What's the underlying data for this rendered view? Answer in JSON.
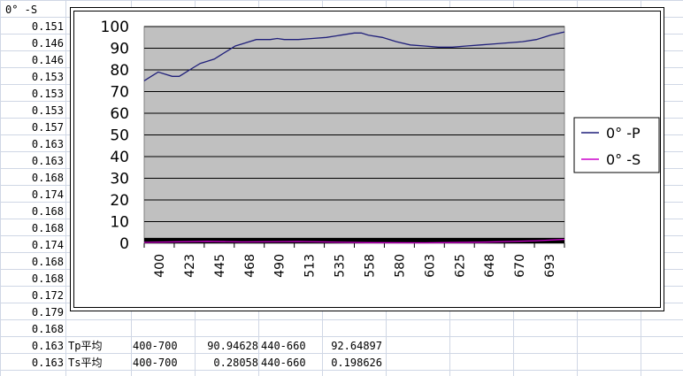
{
  "sheet": {
    "column_header": "0° -S",
    "column_values": [
      "0.151",
      "0.146",
      "0.146",
      "0.153",
      "0.153",
      "0.153",
      "0.157",
      "0.163",
      "0.163",
      "0.168",
      "0.174",
      "0.168",
      "0.168",
      "0.174",
      "0.168",
      "0.168",
      "0.172",
      "0.179",
      "0.168",
      "0.163",
      "0.163"
    ],
    "summary_rows": [
      {
        "label": "Tp平均",
        "range1": "400-700",
        "value1": "90.94628",
        "range2": "440-660",
        "value2": "92.64897"
      },
      {
        "label": "Ts平均",
        "range1": "400-700",
        "value1": "0.28058",
        "range2": "440-660",
        "value2": "0.198626"
      }
    ]
  },
  "chart_data": {
    "type": "line",
    "ylim": [
      0,
      100
    ],
    "yticks": [
      "0",
      "10",
      "20",
      "30",
      "40",
      "50",
      "60",
      "70",
      "80",
      "90",
      "100"
    ],
    "xlim": [
      400,
      700
    ],
    "xticks": [
      "400",
      "423",
      "445",
      "468",
      "490",
      "513",
      "535",
      "558",
      "580",
      "603",
      "625",
      "648",
      "670",
      "693"
    ],
    "grid": true,
    "legend_position": "right",
    "plot_bg_color": "#c0c0c0",
    "series": [
      {
        "name": "0° -P",
        "color": "#1f1f7a",
        "x": [
          400,
          405,
          410,
          415,
          420,
          425,
          430,
          435,
          440,
          445,
          450,
          455,
          460,
          465,
          470,
          475,
          480,
          485,
          490,
          495,
          500,
          510,
          520,
          530,
          540,
          550,
          555,
          560,
          570,
          580,
          590,
          600,
          610,
          620,
          630,
          640,
          650,
          660,
          670,
          680,
          690,
          700
        ],
        "y": [
          75,
          77,
          79,
          78,
          77,
          77,
          79,
          81,
          83,
          84,
          85,
          87,
          89,
          91,
          92,
          93,
          94,
          94,
          94,
          94.5,
          94,
          94,
          94.5,
          95,
          96,
          97,
          97,
          96,
          95,
          93,
          91.5,
          91,
          90.5,
          90.5,
          91,
          91.5,
          92,
          92.5,
          93,
          94,
          96,
          97.5
        ]
      },
      {
        "name": "0° -S",
        "color": "#cc00cc",
        "x": [
          400,
          445,
          470,
          510,
          560,
          600,
          640,
          660,
          680,
          700
        ],
        "y": [
          0.4,
          0.9,
          0.6,
          0.8,
          0.3,
          0.2,
          0.5,
          0.8,
          1.2,
          1.8
        ]
      }
    ]
  }
}
